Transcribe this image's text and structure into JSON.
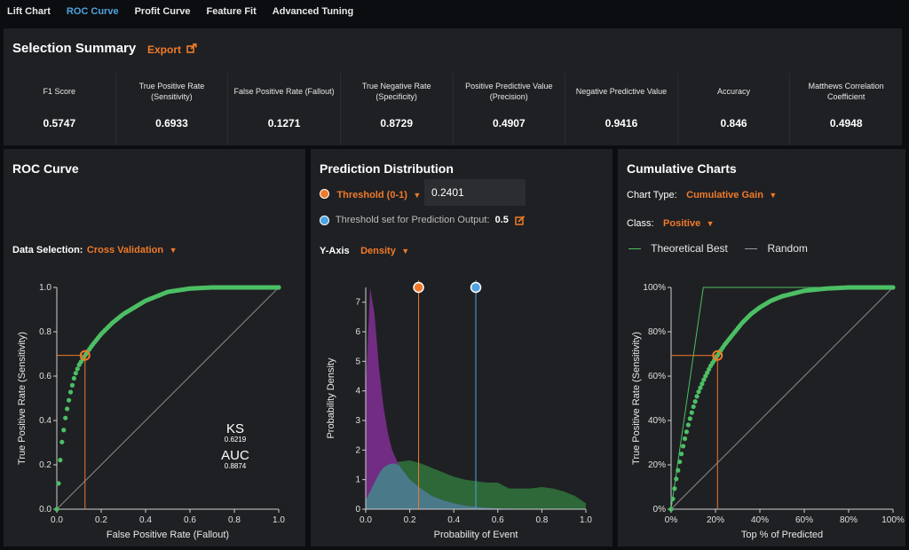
{
  "tabs": [
    "Lift Chart",
    "ROC Curve",
    "Profit Curve",
    "Feature Fit",
    "Advanced Tuning"
  ],
  "active_tab": "ROC Curve",
  "summary": {
    "title": "Selection Summary",
    "export_label": "Export",
    "metrics": [
      {
        "label": "F1 Score",
        "value": "0.5747"
      },
      {
        "label": "True Positive Rate (Sensitivity)",
        "value": "0.6933"
      },
      {
        "label": "False Positive Rate (Fallout)",
        "value": "0.1271"
      },
      {
        "label": "True Negative Rate (Specificity)",
        "value": "0.8729"
      },
      {
        "label": "Positive Predictive Value (Precision)",
        "value": "0.4907"
      },
      {
        "label": "Negative Predictive Value",
        "value": "0.9416"
      },
      {
        "label": "Accuracy",
        "value": "0.846"
      },
      {
        "label": "Matthews Correlation Coefficient",
        "value": "0.4948"
      }
    ]
  },
  "roc": {
    "title": "ROC Curve",
    "data_selection_label": "Data Selection:",
    "data_selection_value": "Cross Validation",
    "ks_label": "KS",
    "ks_value": "0.6219",
    "auc_label": "AUC",
    "auc_value": "0.8874"
  },
  "dist": {
    "title": "Prediction Distribution",
    "threshold_label": "Threshold (0-1)",
    "threshold_value": "0.2401",
    "prediction_threshold_label": "Threshold set for Prediction Output:",
    "prediction_threshold_value": "0.5",
    "yaxis_label": "Y-Axis",
    "yaxis_value": "Density"
  },
  "cum": {
    "title": "Cumulative Charts",
    "chart_type_label": "Chart Type:",
    "chart_type_value": "Cumulative Gain",
    "class_label": "Class:",
    "class_value": "Positive",
    "legend": [
      "Theoretical Best",
      "Random"
    ]
  },
  "colors": {
    "curve": "#4cbf64",
    "threshold": "#f07a2a",
    "prediction_threshold": "#4fa3e0",
    "negative_class": "#7b2d8e",
    "positive_class": "#2f6b3a",
    "overlap": "#4a7a8a"
  },
  "chart_data": [
    {
      "type": "line",
      "title": "ROC Curve",
      "xlabel": "False Positive Rate (Fallout)",
      "ylabel": "True Positive Rate (Sensitivity)",
      "xlim": [
        0,
        1
      ],
      "ylim": [
        0,
        1
      ],
      "xticks": [
        "0.0",
        "0.2",
        "0.4",
        "0.6",
        "0.8",
        "1.0"
      ],
      "yticks": [
        "0.0",
        "0.2",
        "0.4",
        "0.6",
        "0.8",
        "1.0"
      ],
      "series": [
        {
          "x": [
            0,
            0.01,
            0.02,
            0.04,
            0.06,
            0.08,
            0.1,
            0.1271,
            0.16,
            0.2,
            0.25,
            0.3,
            0.35,
            0.4,
            0.45,
            0.5,
            0.6,
            0.7,
            0.8,
            0.9,
            1.0
          ],
          "y": [
            0,
            0.15,
            0.28,
            0.42,
            0.52,
            0.6,
            0.65,
            0.6933,
            0.74,
            0.79,
            0.84,
            0.88,
            0.91,
            0.94,
            0.96,
            0.98,
            0.995,
            1.0,
            1.0,
            1.0,
            1.0
          ]
        },
        {
          "x": [
            0,
            1
          ],
          "y": [
            0,
            1
          ]
        }
      ],
      "selected_point": {
        "x": 0.1271,
        "y": 0.6933
      }
    },
    {
      "type": "area",
      "title": "Prediction Distribution",
      "xlabel": "Probability of Event",
      "ylabel": "Probability Density",
      "xlim": [
        0,
        1
      ],
      "ylim": [
        0,
        7.5
      ],
      "xticks": [
        "0.0",
        "0.2",
        "0.4",
        "0.6",
        "0.8",
        "1.0"
      ],
      "yticks": [
        "0",
        "1",
        "2",
        "3",
        "4",
        "5",
        "6",
        "7"
      ],
      "x": [
        0.0,
        0.02,
        0.04,
        0.06,
        0.08,
        0.1,
        0.12,
        0.15,
        0.2,
        0.25,
        0.3,
        0.35,
        0.4,
        0.45,
        0.5,
        0.55,
        0.6,
        0.65,
        0.7,
        0.75,
        0.8,
        0.85,
        0.9,
        0.95,
        1.0
      ],
      "series": [
        {
          "values": [
            4.0,
            7.5,
            6.6,
            4.8,
            3.5,
            2.6,
            2.0,
            1.5,
            1.0,
            0.7,
            0.45,
            0.3,
            0.2,
            0.12,
            0.08,
            0.05,
            0.03,
            0.02,
            0.01,
            0.0,
            0.0,
            0.0,
            0.0,
            0.0,
            0.0
          ]
        },
        {
          "values": [
            0.3,
            0.6,
            0.9,
            1.2,
            1.4,
            1.5,
            1.55,
            1.6,
            1.65,
            1.55,
            1.4,
            1.25,
            1.1,
            1.0,
            0.95,
            0.9,
            0.9,
            0.7,
            0.7,
            0.7,
            0.75,
            0.7,
            0.6,
            0.45,
            0.2
          ]
        }
      ],
      "threshold": 0.2401,
      "prediction_threshold": 0.5
    },
    {
      "type": "line",
      "title": "Cumulative Charts",
      "xlabel": "Top % of Predicted",
      "ylabel": "True Positive Rate (Sensitivity)",
      "xlim": [
        0,
        100
      ],
      "ylim": [
        0,
        100
      ],
      "xticks": [
        "0%",
        "20%",
        "40%",
        "60%",
        "80%",
        "100%"
      ],
      "yticks": [
        "0%",
        "20%",
        "40%",
        "60%",
        "80%",
        "100%"
      ],
      "series": [
        {
          "name": "Cumulative Gain",
          "x": [
            0,
            2,
            4,
            6,
            8,
            10,
            12,
            15,
            18,
            20.9,
            24,
            28,
            32,
            36,
            40,
            45,
            50,
            60,
            70,
            80,
            90,
            100
          ],
          "y": [
            0,
            12,
            22,
            31,
            39,
            46,
            52,
            59,
            65,
            69.3,
            74,
            79,
            84,
            88,
            91,
            94,
            96,
            98.5,
            99.5,
            100,
            100,
            100
          ]
        },
        {
          "name": "Theoretical Best",
          "x": [
            0,
            14.5,
            100
          ],
          "y": [
            0,
            100,
            100
          ]
        },
        {
          "name": "Random",
          "x": [
            0,
            100
          ],
          "y": [
            0,
            100
          ]
        }
      ],
      "selected_point": {
        "x": 20.9,
        "y": 69.3
      }
    }
  ]
}
